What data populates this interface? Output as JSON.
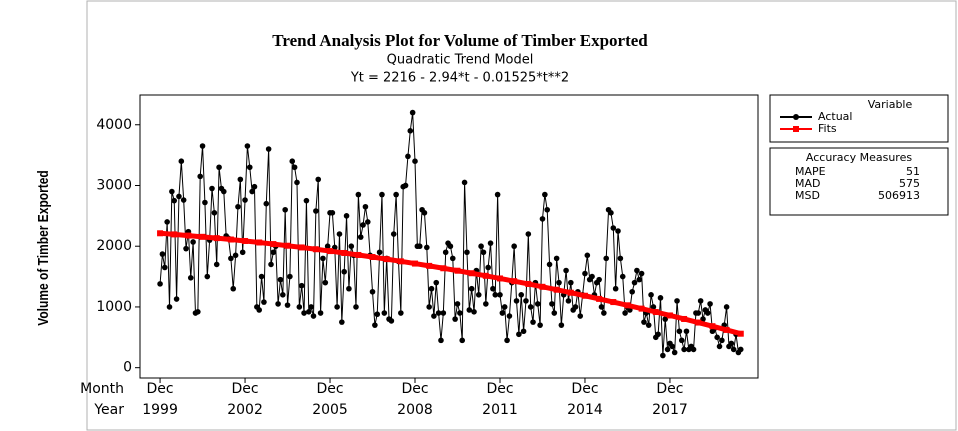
{
  "chart_data": {
    "type": "line",
    "title": "Trend Analysis Plot for Volume of Timber Exported",
    "subtitle": "Quadratic Trend Model",
    "equation": "Yt = 2216 - 2.94*t - 0.01525*t**2",
    "ylabel": "Volume of Timber Exported",
    "x_row_labels": [
      "Month",
      "Year"
    ],
    "xlim": [
      -8.5,
      253.3
    ],
    "xticks": [
      {
        "value": 0,
        "label": "Dec"
      },
      {
        "value": 36,
        "label": "Dec"
      },
      {
        "value": 72,
        "label": "Dec"
      },
      {
        "value": 108,
        "label": "Dec"
      },
      {
        "value": 144,
        "label": "Dec"
      },
      {
        "value": 180,
        "label": "Dec"
      },
      {
        "value": 216,
        "label": "Dec"
      }
    ],
    "xtick_years": [
      "1999",
      "2002",
      "2005",
      "2008",
      "2011",
      "2014",
      "2017"
    ],
    "ylim": [
      -170,
      4490
    ],
    "yticks": [
      0,
      1000,
      2000,
      3000,
      4000
    ],
    "legend_title": "Variable",
    "series": [
      {
        "name": "Actual",
        "color": "#000000",
        "values": [
          1380,
          1870,
          1650,
          2400,
          1000,
          2900,
          2750,
          1130,
          2820,
          3400,
          2760,
          1960,
          2240,
          1480,
          2070,
          900,
          920,
          3150,
          3650,
          2720,
          1500,
          2100,
          2950,
          2550,
          1700,
          3300,
          2950,
          2900,
          2170,
          2130,
          1800,
          1300,
          1850,
          2650,
          3100,
          1900,
          2760,
          3650,
          3300,
          2900,
          2980,
          1000,
          950,
          1500,
          1080,
          2700,
          3600,
          1700,
          1900,
          2000,
          1050,
          1450,
          1200,
          2600,
          1030,
          1500,
          3400,
          3300,
          3050,
          1000,
          1350,
          900,
          2750,
          920,
          1000,
          850,
          2580,
          3100,
          900,
          1800,
          1400,
          2000,
          2550,
          2550,
          1980,
          1000,
          2200,
          750,
          1580,
          2500,
          1300,
          2000,
          1850,
          1000,
          2850,
          2150,
          2350,
          2650,
          2400,
          1850,
          1250,
          700,
          880,
          1900,
          2850,
          900,
          1800,
          800,
          770,
          2200,
          2850,
          1750,
          900,
          2980,
          3000,
          3480,
          3900,
          4200,
          3400,
          2000,
          2000,
          2600,
          2550,
          1980,
          1000,
          1300,
          850,
          1400,
          900,
          450,
          900,
          1900,
          2050,
          2000,
          1800,
          800,
          1050,
          900,
          450,
          3050,
          1900,
          950,
          1300,
          920,
          1600,
          1200,
          2000,
          1900,
          1050,
          1650,
          2050,
          1300,
          1200,
          2850,
          1200,
          900,
          1000,
          450,
          850,
          1400,
          2000,
          1100,
          550,
          1200,
          600,
          1100,
          2200,
          1000,
          750,
          1400,
          1050,
          700,
          2450,
          2850,
          2600,
          1700,
          1050,
          900,
          1800,
          1400,
          700,
          1200,
          1600,
          1100,
          1400,
          950,
          1000,
          1250,
          850,
          1200,
          1550,
          1850,
          1450,
          1500,
          1200,
          1400,
          1450,
          1000,
          900,
          1800,
          2600,
          2550,
          2300,
          1300,
          2250,
          1800,
          1500,
          900,
          1000,
          950,
          1250,
          1400,
          1600,
          1450,
          1550,
          750,
          900,
          700,
          1200,
          1000,
          500,
          550,
          1150,
          200,
          800,
          300,
          400,
          350,
          250,
          1100,
          600,
          450,
          300,
          600,
          300,
          350,
          300,
          900,
          900,
          1100,
          800,
          950,
          900,
          1050,
          600,
          650,
          500,
          350,
          450,
          700,
          1000,
          350,
          400,
          300,
          550,
          250,
          300
        ]
      },
      {
        "name": "Fits",
        "color": "#ff0000",
        "x": [
          0,
          6,
          12,
          18,
          24,
          30,
          36,
          42,
          48,
          54,
          60,
          66,
          72,
          78,
          84,
          90,
          96,
          102,
          108,
          114,
          120,
          126,
          132,
          138,
          144,
          150,
          156,
          162,
          168,
          174,
          180,
          186,
          192,
          198,
          204,
          210,
          216,
          222,
          228,
          234,
          240,
          246
        ],
        "values": [
          2213.0,
          2194.7,
          2175.2,
          2154.6,
          2133.0,
          2110.2,
          2086.3,
          2061.4,
          2035.3,
          2008.2,
          1979.9,
          1950.6,
          1920.1,
          1888.6,
          1855.9,
          1822.2,
          1787.3,
          1751.4,
          1714.4,
          1676.2,
          1637.0,
          1596.7,
          1555.2,
          1512.7,
          1469.1,
          1424.4,
          1378.5,
          1331.6,
          1283.6,
          1234.5,
          1184.3,
          1132.9,
          1080.5,
          1027.0,
          972.4,
          916.7,
          859.9,
          802.0,
          743.0,
          682.9,
          621.7,
          559.4
        ]
      }
    ],
    "accuracy": {
      "title": "Accuracy Measures",
      "names": [
        "MAPE",
        "MAD",
        "MSD"
      ],
      "values": [
        51,
        575,
        506913
      ]
    }
  }
}
